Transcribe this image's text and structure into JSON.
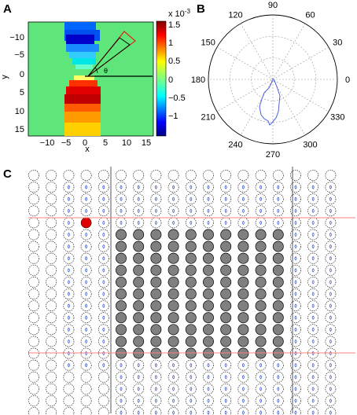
{
  "panels": {
    "a": {
      "label": "A",
      "xlabel": "x",
      "ylabel": "y",
      "xticks": [
        "−10",
        "−5",
        "0",
        "5",
        "10",
        "15"
      ],
      "yticks": [
        "−10",
        "−5",
        "0",
        "5",
        "10",
        "15"
      ],
      "colorbar_exponent": "x 10",
      "colorbar_exponent_power": "-3",
      "colorbar_ticks": [
        "1.5",
        "1",
        "0.5",
        "0",
        "−0.5",
        "−1"
      ],
      "theta_symbol": "θ",
      "colors": {
        "background": "#5ee67a",
        "marker": "#ff0000"
      }
    },
    "b": {
      "label": "B",
      "angle_labels": [
        "90",
        "60",
        "30",
        "0",
        "330",
        "300",
        "270",
        "240",
        "210",
        "180",
        "150",
        "120"
      ],
      "colors": {
        "trace": "#5060e0"
      }
    },
    "c": {
      "label": "C",
      "grid": {
        "rows": 22,
        "cols": 18,
        "filled_rows_from": 5,
        "filled_rows_to": 15,
        "filled_cols_from": 5,
        "filled_cols_to": 14
      },
      "colors": {
        "filled": "#808080",
        "highlight": "#e00000",
        "boundary": "#ff8080",
        "glyph": "#3050d0"
      }
    }
  }
}
